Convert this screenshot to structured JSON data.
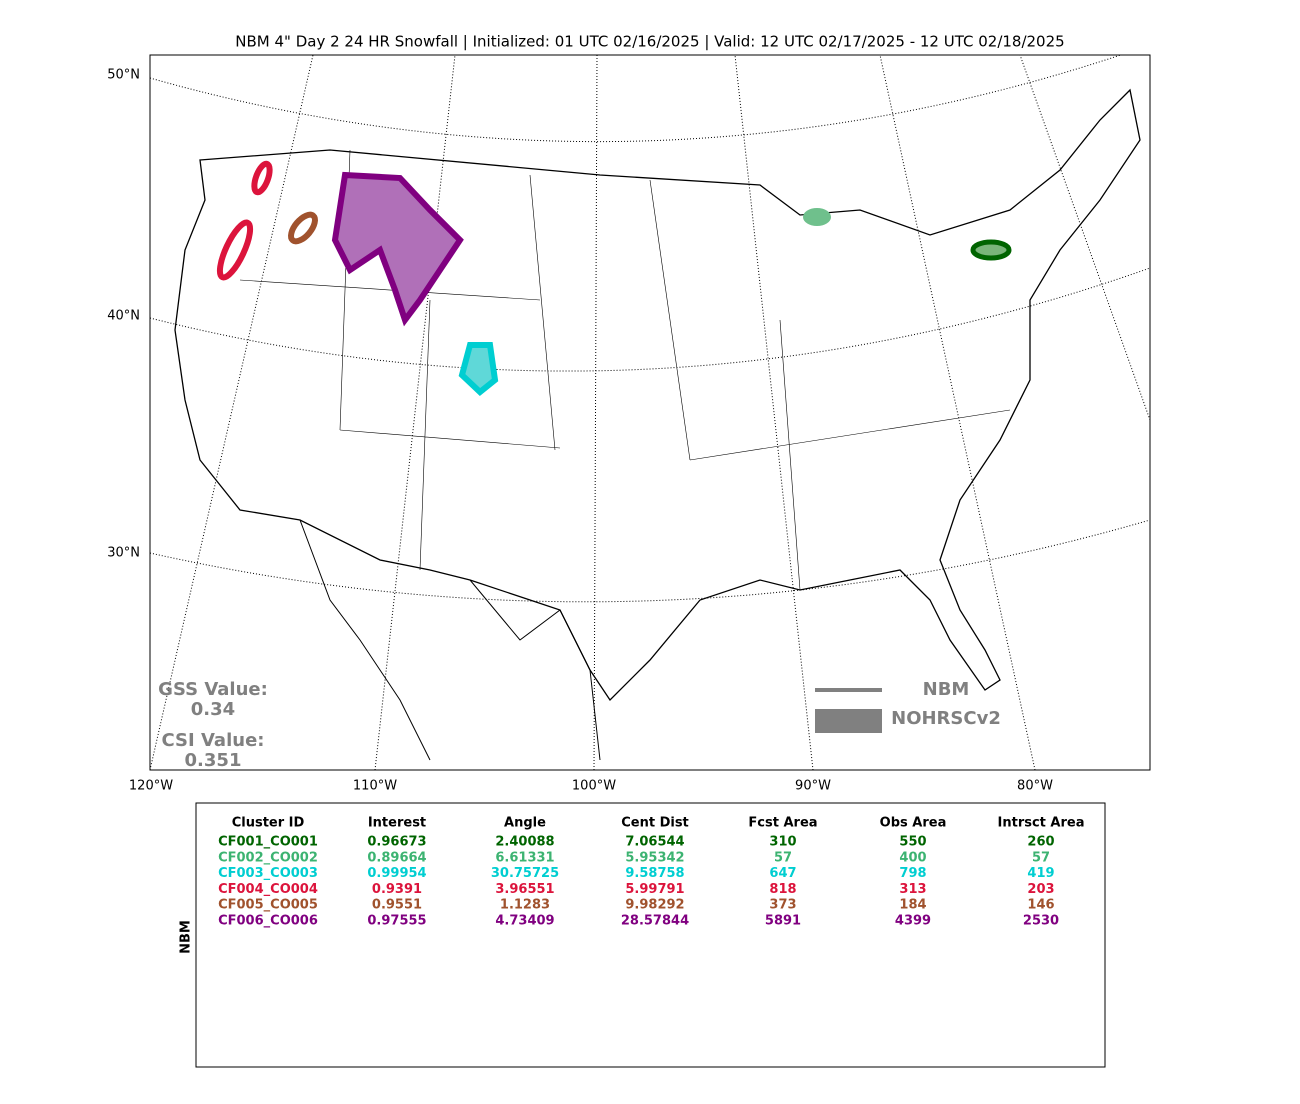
{
  "title": "NBM 4\" Day 2 24 HR Snowfall | Initialized: 01 UTC 02/16/2025 | Valid: 12 UTC 02/17/2025 - 12 UTC 02/18/2025",
  "map": {
    "lat_labels": [
      "50°N",
      "40°N",
      "30°N"
    ],
    "lon_labels": [
      "120°W",
      "110°W",
      "100°W",
      "90°W",
      "80°W"
    ],
    "scores": [
      {
        "label": "GSS Value:",
        "value": "0.34"
      },
      {
        "label": "CSI Value:",
        "value": "0.351"
      }
    ],
    "legend": [
      "NBM",
      "NOHRSCv2"
    ]
  },
  "table": {
    "side_label": "NBM",
    "columns": [
      "Cluster ID",
      "Interest",
      "Angle",
      "Cent Dist",
      "Fcst Area",
      "Obs Area",
      "Intrsct Area"
    ],
    "row_colors": [
      "#006400",
      "#3cb371",
      "#00ced1",
      "#dc143c",
      "#a0522d",
      "#800080"
    ],
    "rows": [
      [
        "CF001_CO001",
        0.96673,
        2.40088,
        7.06544,
        310,
        550,
        260
      ],
      [
        "CF002_CO002",
        0.89664,
        6.61331,
        5.95342,
        57,
        400,
        57
      ],
      [
        "CF003_CO003",
        0.99954,
        30.75725,
        9.58758,
        647,
        798,
        419
      ],
      [
        "CF004_CO004",
        0.9391,
        3.96551,
        5.99791,
        818,
        313,
        203
      ],
      [
        "CF005_CO005",
        0.9551,
        1.1283,
        9.98292,
        373,
        184,
        146
      ],
      [
        "CF006_CO006",
        0.97555,
        4.73409,
        28.57844,
        5891,
        4399,
        2530
      ]
    ]
  }
}
